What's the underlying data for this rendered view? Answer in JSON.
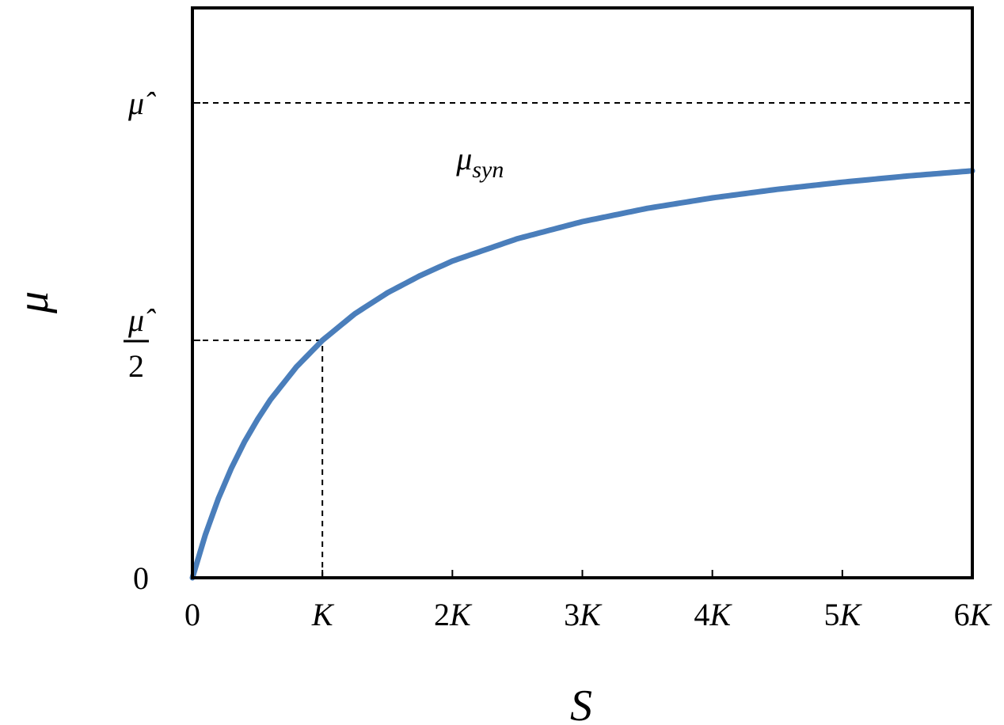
{
  "chart_data": {
    "type": "line",
    "xlabel": "S",
    "ylabel": "μ",
    "xlim": [
      0,
      6
    ],
    "ylim": [
      0,
      1.2
    ],
    "x_ticks": [
      {
        "value": 0,
        "label": "0"
      },
      {
        "value": 1,
        "label": "K"
      },
      {
        "value": 2,
        "label": "2K"
      },
      {
        "value": 3,
        "label": "3K"
      },
      {
        "value": 4,
        "label": "4K"
      },
      {
        "value": 5,
        "label": "5K"
      },
      {
        "value": 6,
        "label": "6K"
      }
    ],
    "y_ticks": [
      {
        "value": 0,
        "label": "0"
      },
      {
        "value": 0.5,
        "label": "μ̂",
        "denominator": "2"
      },
      {
        "value": 1.0,
        "label": "μ̂"
      }
    ],
    "series": [
      {
        "name": "μsyn",
        "name_main": "μ",
        "name_sub": "syn",
        "color": "#4a7ebb",
        "x": [
          0,
          0.1,
          0.2,
          0.3,
          0.4,
          0.5,
          0.6,
          0.8,
          1.0,
          1.25,
          1.5,
          1.75,
          2.0,
          2.5,
          3.0,
          3.5,
          4.0,
          4.5,
          5.0,
          5.5,
          6.0
        ],
        "y": [
          0,
          0.091,
          0.167,
          0.231,
          0.286,
          0.333,
          0.375,
          0.444,
          0.5,
          0.556,
          0.6,
          0.636,
          0.667,
          0.714,
          0.75,
          0.778,
          0.8,
          0.818,
          0.833,
          0.846,
          0.857
        ]
      }
    ],
    "reference_lines": [
      {
        "type": "horizontal",
        "y": 1.0,
        "from_x": 0,
        "to_x": 6,
        "style": "dashed"
      },
      {
        "type": "horizontal",
        "y": 0.5,
        "from_x": 0,
        "to_x": 1,
        "style": "dashed"
      },
      {
        "type": "vertical",
        "x": 1,
        "from_y": 0,
        "to_y": 0.5,
        "style": "dashed"
      }
    ],
    "annotations": [
      {
        "text": "μsyn",
        "attached_to": "series-0"
      }
    ],
    "grid": false,
    "legend": "none"
  }
}
